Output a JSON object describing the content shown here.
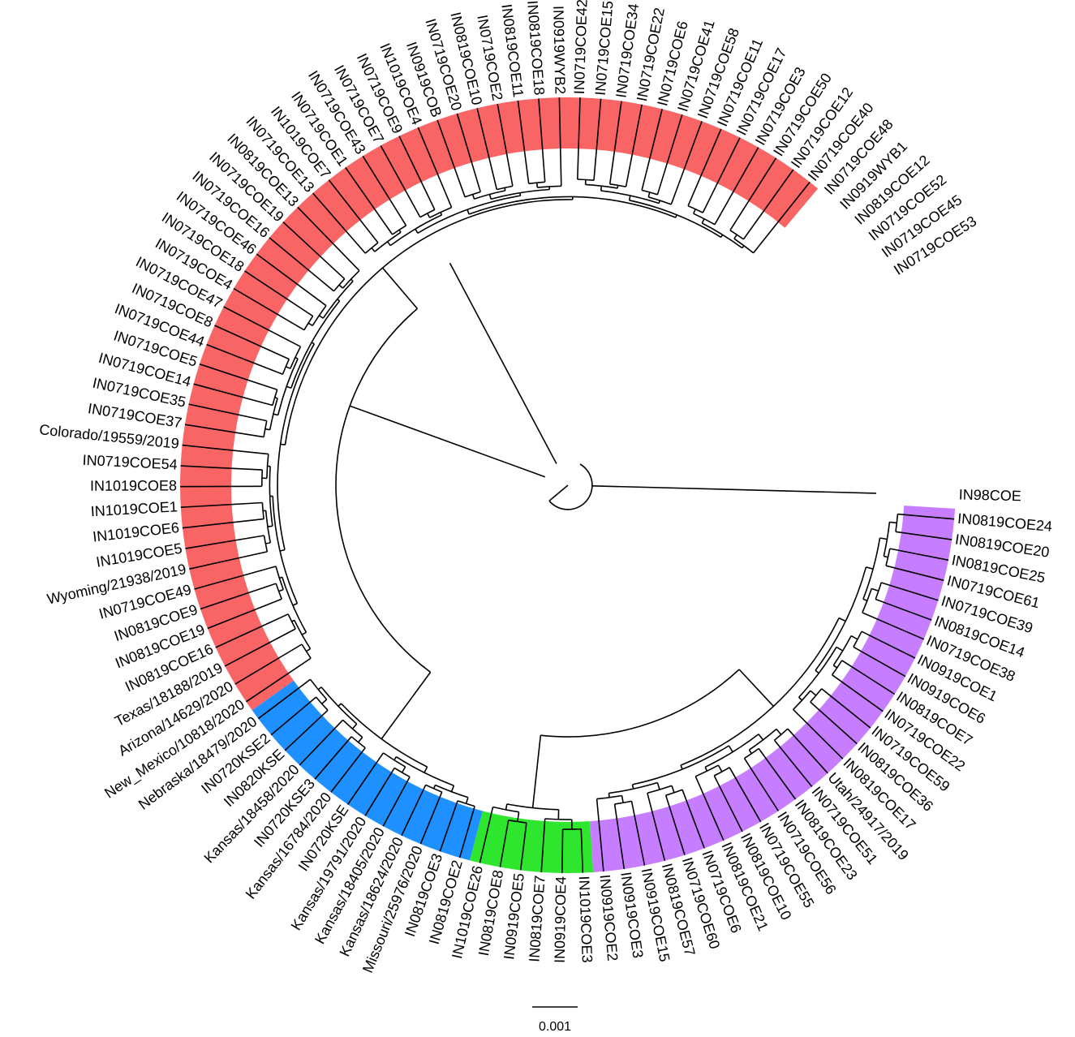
{
  "colors": {
    "clade_purple": "#c77dff",
    "clade_green": "#2ee62e",
    "clade_blue": "#1e90ff",
    "clade_red": "#f96464",
    "branch": "#000000"
  },
  "clades": [
    {
      "name": "purple",
      "color": "#c77dff",
      "first_tip": 1,
      "last_tip": 27
    },
    {
      "name": "green",
      "color": "#2ee62e",
      "first_tip": 28,
      "last_tip": 33
    },
    {
      "name": "blue",
      "color": "#1e90ff",
      "first_tip": 34,
      "last_tip": 46
    },
    {
      "name": "red",
      "color": "#f96464",
      "first_tip": 47,
      "last_tip": 100
    }
  ],
  "root_tip": "IN98COE",
  "tips": [
    "IN98COE",
    "IN0819COE24",
    "IN0819COE20",
    "IN0819COE25",
    "IN0719COE61",
    "IN0719COE39",
    "IN0819COE14",
    "IN0719COE38",
    "IN0919COE1",
    "IN0919COE6",
    "IN0819COE7",
    "IN0719COE22",
    "IN0719COE59",
    "IN0819COE36",
    "IN0819COE17",
    "Utah/24917/2019",
    "IN0719COE51",
    "IN0819COE23",
    "IN0719COE56",
    "IN0719COE55",
    "IN0819COE10",
    "IN0819COE21",
    "IN0719COE6",
    "IN0719COE60",
    "IN0819COE57",
    "IN0919COE15",
    "IN0919COE3",
    "IN0919COE2",
    "IN1019COE3",
    "IN0919COE4",
    "IN0819COE7",
    "IN0919COE5",
    "IN0819COE8",
    "IN1019COE26",
    "IN0819COE2",
    "IN0819COE3",
    "Missouri/25976/2020",
    "Kansas/18624/2020",
    "Kansas/18405/2020",
    "Kansas/19791/2020",
    "IN0720KSE",
    "Kansas/16784/2020",
    "IN0720KSE3",
    "Kansas/18458/2020",
    "IN0820KSE",
    "IN0720KSE2",
    "Nebraska/18479/2020",
    "New_Mexico/10818/2020",
    "Arizona/14629/2020",
    "Texas/18188/2019",
    "IN0819COE16",
    "IN0819COE19",
    "IN0819COE9",
    "IN0719COE49",
    "Wyoming/21938/2019",
    "IN1019COE5",
    "IN1019COE6",
    "IN1019COE1",
    "IN1019COE8",
    "IN0719COE54",
    "Colorado/19559/2019",
    "IN0719COE37",
    "IN0719COE35",
    "IN0719COE14",
    "IN0719COE5",
    "IN0719COE44",
    "IN0719COE8",
    "IN0719COE47",
    "IN0719COE4",
    "IN0719COE18",
    "IN0719COE46",
    "IN0719COE16",
    "IN0719COE19",
    "IN0819COE13",
    "IN0719COE13",
    "IN1019COE7",
    "IN0719COE1",
    "IN0719COE43",
    "IN0719COE7",
    "IN0719COE9",
    "IN1019COE4",
    "IN0919COB",
    "IN0719COE20",
    "IN0819COE10",
    "IN0719COE2",
    "IN0819COE11",
    "IN0819COE18",
    "IN0919WYB2",
    "IN0719COE42",
    "IN0719COE15",
    "IN0719COE34",
    "IN0719COE22",
    "IN0719COE6",
    "IN0719COE41",
    "IN0719COE58",
    "IN0719COE11",
    "IN0719COE17",
    "IN0719COE3",
    "IN0719COE50",
    "IN0719COE12",
    "IN0719COE40",
    "IN0719COE48",
    "IN0919WYB1",
    "IN0819COE12",
    "IN0719COE52",
    "IN0719COE45",
    "IN0719COE53"
  ],
  "scale_bar": {
    "label": "0.001"
  }
}
